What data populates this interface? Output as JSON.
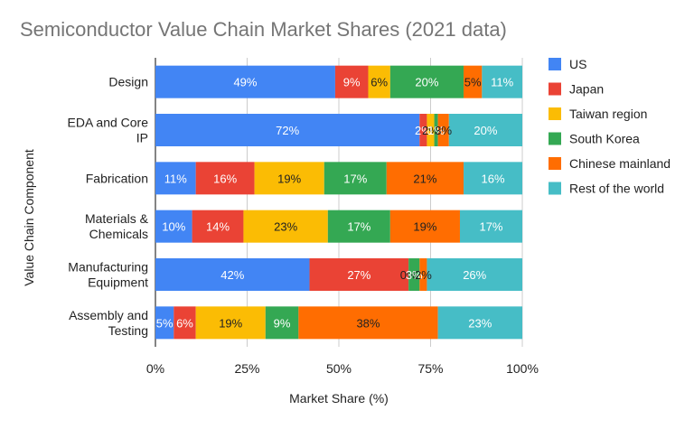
{
  "chart_data": {
    "type": "bar",
    "orientation": "horizontal",
    "stacked": "percent",
    "title": "Semiconductor Value Chain Market Shares (2021 data)",
    "xlabel": "Market Share (%)",
    "ylabel": "Value Chain Component",
    "xlim": [
      0,
      100
    ],
    "x_ticks": [
      "0%",
      "25%",
      "50%",
      "75%",
      "100%"
    ],
    "categories": [
      [
        "Design"
      ],
      [
        "EDA and Core",
        "IP"
      ],
      [
        "Fabrication"
      ],
      [
        "Materials &",
        "Chemicals"
      ],
      [
        "Manufacturing",
        "Equipment"
      ],
      [
        "Assembly and",
        "Testing"
      ]
    ],
    "legend_position": "right",
    "grid": true,
    "series": [
      {
        "name": "US",
        "color": "#4285f4",
        "values": [
          49,
          72,
          11,
          10,
          42,
          5
        ]
      },
      {
        "name": "Japan",
        "color": "#ea4335",
        "values": [
          9,
          2,
          16,
          14,
          27,
          6
        ]
      },
      {
        "name": "Taiwan region",
        "color": "#fbbc04",
        "values": [
          6,
          2,
          19,
          23,
          0,
          19
        ]
      },
      {
        "name": "South Korea",
        "color": "#34a853",
        "values": [
          20,
          1,
          17,
          17,
          3,
          9
        ]
      },
      {
        "name": "Chinese mainland",
        "color": "#ff6d01",
        "values": [
          5,
          3,
          21,
          19,
          2,
          38
        ]
      },
      {
        "name": "Rest of the world",
        "color": "#46bdc6",
        "values": [
          11,
          20,
          16,
          17,
          26,
          23
        ]
      }
    ],
    "data_label_suffix": "%"
  }
}
